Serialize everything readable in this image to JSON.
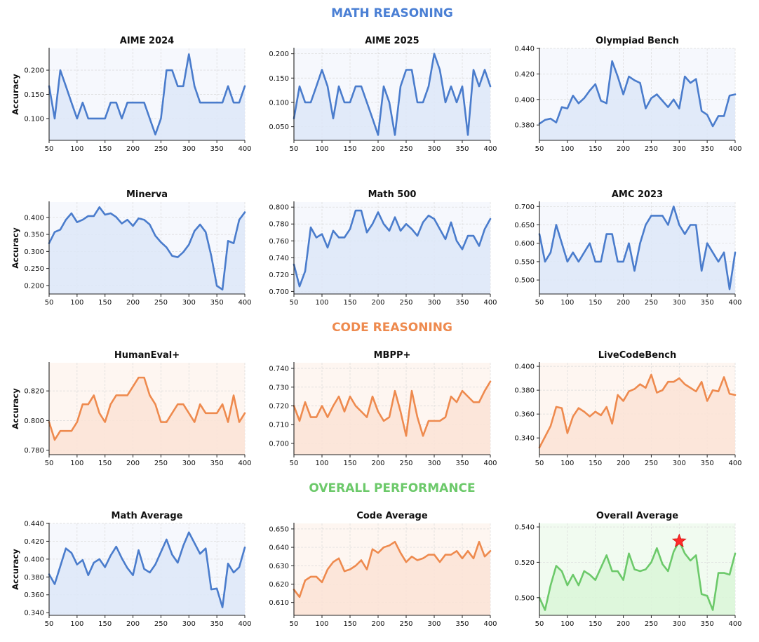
{
  "sections": [
    {
      "title": "MATH REASONING",
      "color": "#4a7fd4"
    },
    {
      "title": "CODE REASONING",
      "color": "#ee8a4e"
    },
    {
      "title": "OVERALL PERFORMANCE",
      "color": "#6cc96a"
    }
  ],
  "palettes": {
    "math": {
      "line": "#4a7ccc",
      "fill": "#dde8f8",
      "bg": "#f6f8fd"
    },
    "code": {
      "line": "#ee8a4e",
      "fill": "#fbe3d6",
      "bg": "#fef6f1"
    },
    "overall": {
      "line": "#6cc96a",
      "fill": "#dbf6d8",
      "bg": "#f1fbf0"
    }
  },
  "highlight_color": "#ff2a2a",
  "chart_data": [
    {
      "type": "area",
      "title": "AIME 2024",
      "palette": "math",
      "ylabel": "Accuracy",
      "x": [
        50,
        60,
        70,
        80,
        90,
        100,
        110,
        120,
        130,
        140,
        150,
        160,
        170,
        180,
        190,
        200,
        210,
        220,
        230,
        240,
        250,
        260,
        270,
        280,
        290,
        300,
        310,
        320,
        330,
        340,
        350,
        360,
        370,
        380,
        390,
        400
      ],
      "values": [
        0.167,
        0.1,
        0.2,
        0.167,
        0.133,
        0.1,
        0.133,
        0.1,
        0.1,
        0.1,
        0.1,
        0.133,
        0.133,
        0.1,
        0.133,
        0.133,
        0.133,
        0.133,
        0.1,
        0.067,
        0.1,
        0.2,
        0.2,
        0.167,
        0.167,
        0.233,
        0.167,
        0.133,
        0.133,
        0.133,
        0.133,
        0.133,
        0.167,
        0.133,
        0.133,
        0.167
      ],
      "xlim": [
        50,
        400
      ],
      "ylim": [
        0.055,
        0.245
      ],
      "yticks": [
        0.1,
        0.15,
        0.2
      ],
      "decimals": 3
    },
    {
      "type": "area",
      "title": "AIME 2025",
      "palette": "math",
      "ylabel": "",
      "x": [
        50,
        60,
        70,
        80,
        90,
        100,
        110,
        120,
        130,
        140,
        150,
        160,
        170,
        180,
        190,
        200,
        210,
        220,
        230,
        240,
        250,
        260,
        270,
        280,
        290,
        300,
        310,
        320,
        330,
        340,
        350,
        360,
        370,
        380,
        390,
        400
      ],
      "values": [
        0.067,
        0.133,
        0.1,
        0.1,
        0.133,
        0.167,
        0.133,
        0.067,
        0.133,
        0.1,
        0.1,
        0.133,
        0.133,
        0.1,
        0.067,
        0.033,
        0.133,
        0.1,
        0.033,
        0.133,
        0.167,
        0.167,
        0.1,
        0.1,
        0.133,
        0.2,
        0.167,
        0.1,
        0.133,
        0.1,
        0.133,
        0.033,
        0.167,
        0.133,
        0.167,
        0.133
      ],
      "xlim": [
        50,
        400
      ],
      "ylim": [
        0.022,
        0.211
      ],
      "yticks": [
        0.05,
        0.1,
        0.15,
        0.2
      ],
      "decimals": 3
    },
    {
      "type": "area",
      "title": "Olympiad Bench",
      "palette": "math",
      "ylabel": "",
      "x": [
        50,
        60,
        70,
        80,
        90,
        100,
        110,
        120,
        130,
        140,
        150,
        160,
        170,
        180,
        190,
        200,
        210,
        220,
        230,
        240,
        250,
        260,
        270,
        280,
        290,
        300,
        310,
        320,
        330,
        340,
        350,
        360,
        370,
        380,
        390,
        400
      ],
      "values": [
        0.381,
        0.384,
        0.385,
        0.382,
        0.394,
        0.393,
        0.403,
        0.397,
        0.401,
        0.407,
        0.412,
        0.399,
        0.397,
        0.43,
        0.418,
        0.404,
        0.418,
        0.415,
        0.413,
        0.393,
        0.401,
        0.404,
        0.399,
        0.394,
        0.4,
        0.393,
        0.418,
        0.413,
        0.416,
        0.391,
        0.388,
        0.379,
        0.387,
        0.387,
        0.403,
        0.404
      ],
      "xlim": [
        50,
        400
      ],
      "ylim": [
        0.368,
        0.44
      ],
      "yticks": [
        0.38,
        0.4,
        0.42,
        0.44
      ],
      "decimals": 3
    },
    {
      "type": "area",
      "title": "Minerva",
      "palette": "math",
      "ylabel": "Accuracy",
      "x": [
        50,
        60,
        70,
        80,
        90,
        100,
        110,
        120,
        130,
        140,
        150,
        160,
        170,
        180,
        190,
        200,
        210,
        220,
        230,
        240,
        250,
        260,
        270,
        280,
        290,
        300,
        310,
        320,
        330,
        340,
        350,
        360,
        370,
        380,
        390,
        400
      ],
      "values": [
        0.324,
        0.357,
        0.364,
        0.393,
        0.412,
        0.386,
        0.393,
        0.404,
        0.404,
        0.43,
        0.408,
        0.412,
        0.401,
        0.382,
        0.393,
        0.375,
        0.397,
        0.393,
        0.379,
        0.346,
        0.327,
        0.312,
        0.287,
        0.283,
        0.298,
        0.32,
        0.36,
        0.379,
        0.357,
        0.287,
        0.199,
        0.188,
        0.331,
        0.324,
        0.393,
        0.415
      ],
      "xlim": [
        50,
        400
      ],
      "ylim": [
        0.175,
        0.445
      ],
      "yticks": [
        0.2,
        0.25,
        0.3,
        0.35,
        0.4
      ],
      "decimals": 3
    },
    {
      "type": "area",
      "title": "Math 500",
      "palette": "math",
      "ylabel": "",
      "x": [
        50,
        60,
        70,
        80,
        90,
        100,
        110,
        120,
        130,
        140,
        150,
        160,
        170,
        180,
        190,
        200,
        210,
        220,
        230,
        240,
        250,
        260,
        270,
        280,
        290,
        300,
        310,
        320,
        330,
        340,
        350,
        360,
        370,
        380,
        390,
        400
      ],
      "values": [
        0.732,
        0.706,
        0.724,
        0.776,
        0.764,
        0.768,
        0.752,
        0.772,
        0.764,
        0.764,
        0.774,
        0.796,
        0.796,
        0.77,
        0.78,
        0.794,
        0.78,
        0.772,
        0.788,
        0.772,
        0.78,
        0.774,
        0.766,
        0.782,
        0.79,
        0.786,
        0.774,
        0.762,
        0.782,
        0.76,
        0.75,
        0.766,
        0.766,
        0.754,
        0.774,
        0.786
      ],
      "xlim": [
        50,
        400
      ],
      "ylim": [
        0.697,
        0.806
      ],
      "yticks": [
        0.7,
        0.72,
        0.74,
        0.76,
        0.78,
        0.8
      ],
      "decimals": 3
    },
    {
      "type": "area",
      "title": "AMC 2023",
      "palette": "math",
      "ylabel": "",
      "x": [
        50,
        60,
        70,
        80,
        90,
        100,
        110,
        120,
        130,
        140,
        150,
        160,
        170,
        180,
        190,
        200,
        210,
        220,
        230,
        240,
        250,
        260,
        270,
        280,
        290,
        300,
        310,
        320,
        330,
        340,
        350,
        360,
        370,
        380,
        390,
        400
      ],
      "values": [
        0.625,
        0.55,
        0.575,
        0.65,
        0.6,
        0.55,
        0.575,
        0.55,
        0.575,
        0.6,
        0.55,
        0.55,
        0.625,
        0.625,
        0.55,
        0.55,
        0.6,
        0.525,
        0.6,
        0.65,
        0.675,
        0.675,
        0.675,
        0.65,
        0.7,
        0.65,
        0.625,
        0.65,
        0.65,
        0.525,
        0.6,
        0.575,
        0.55,
        0.575,
        0.475,
        0.575
      ],
      "xlim": [
        50,
        400
      ],
      "ylim": [
        0.462,
        0.712
      ],
      "yticks": [
        0.5,
        0.55,
        0.6,
        0.65,
        0.7
      ],
      "decimals": 3
    },
    {
      "type": "area",
      "title": "HumanEval+",
      "palette": "code",
      "ylabel": "Accuracy",
      "x": [
        50,
        60,
        70,
        80,
        90,
        100,
        110,
        120,
        130,
        140,
        150,
        160,
        170,
        180,
        190,
        200,
        210,
        220,
        230,
        240,
        250,
        260,
        270,
        280,
        290,
        300,
        310,
        320,
        330,
        340,
        350,
        360,
        370,
        380,
        390,
        400
      ],
      "values": [
        0.799,
        0.787,
        0.793,
        0.793,
        0.793,
        0.799,
        0.811,
        0.811,
        0.817,
        0.805,
        0.799,
        0.811,
        0.817,
        0.817,
        0.817,
        0.823,
        0.829,
        0.829,
        0.817,
        0.811,
        0.799,
        0.799,
        0.805,
        0.811,
        0.811,
        0.805,
        0.799,
        0.811,
        0.805,
        0.805,
        0.805,
        0.811,
        0.799,
        0.817,
        0.799,
        0.805
      ],
      "xlim": [
        50,
        400
      ],
      "ylim": [
        0.777,
        0.839
      ],
      "yticks": [
        0.78,
        0.8,
        0.82
      ],
      "decimals": 3
    },
    {
      "type": "area",
      "title": "MBPP+",
      "palette": "code",
      "ylabel": "",
      "x": [
        50,
        60,
        70,
        80,
        90,
        100,
        110,
        120,
        130,
        140,
        150,
        160,
        170,
        180,
        190,
        200,
        210,
        220,
        230,
        240,
        250,
        260,
        270,
        280,
        290,
        300,
        310,
        320,
        330,
        340,
        350,
        360,
        370,
        380,
        390,
        400
      ],
      "values": [
        0.72,
        0.712,
        0.722,
        0.714,
        0.714,
        0.72,
        0.714,
        0.72,
        0.725,
        0.717,
        0.725,
        0.72,
        0.717,
        0.714,
        0.725,
        0.717,
        0.712,
        0.714,
        0.728,
        0.717,
        0.704,
        0.728,
        0.714,
        0.704,
        0.712,
        0.712,
        0.712,
        0.714,
        0.725,
        0.722,
        0.728,
        0.725,
        0.722,
        0.722,
        0.728,
        0.733
      ],
      "xlim": [
        50,
        400
      ],
      "ylim": [
        0.694,
        0.743
      ],
      "yticks": [
        0.7,
        0.71,
        0.72,
        0.73,
        0.74
      ],
      "decimals": 3
    },
    {
      "type": "area",
      "title": "LiveCodeBench",
      "palette": "code",
      "ylabel": "",
      "x": [
        50,
        60,
        70,
        80,
        90,
        100,
        110,
        120,
        130,
        140,
        150,
        160,
        170,
        180,
        190,
        200,
        210,
        220,
        230,
        240,
        250,
        260,
        270,
        280,
        290,
        300,
        310,
        320,
        330,
        340,
        350,
        360,
        370,
        380,
        390,
        400
      ],
      "values": [
        0.332,
        0.341,
        0.35,
        0.366,
        0.365,
        0.344,
        0.358,
        0.365,
        0.362,
        0.358,
        0.362,
        0.359,
        0.366,
        0.352,
        0.376,
        0.371,
        0.379,
        0.381,
        0.385,
        0.382,
        0.393,
        0.378,
        0.38,
        0.387,
        0.387,
        0.39,
        0.385,
        0.382,
        0.379,
        0.387,
        0.371,
        0.38,
        0.379,
        0.391,
        0.377,
        0.376
      ],
      "xlim": [
        50,
        400
      ],
      "ylim": [
        0.326,
        0.403
      ],
      "yticks": [
        0.34,
        0.36,
        0.38,
        0.4
      ],
      "decimals": 3
    },
    {
      "type": "area",
      "title": "Math Average",
      "palette": "math",
      "ylabel": "Accuracy",
      "x": [
        50,
        60,
        70,
        80,
        90,
        100,
        110,
        120,
        130,
        140,
        150,
        160,
        170,
        180,
        190,
        200,
        210,
        220,
        230,
        240,
        250,
        260,
        270,
        280,
        290,
        300,
        310,
        320,
        330,
        340,
        350,
        360,
        370,
        380,
        390,
        400
      ],
      "values": [
        0.383,
        0.372,
        0.392,
        0.412,
        0.407,
        0.394,
        0.399,
        0.382,
        0.396,
        0.4,
        0.391,
        0.404,
        0.414,
        0.401,
        0.39,
        0.382,
        0.41,
        0.389,
        0.385,
        0.394,
        0.408,
        0.422,
        0.405,
        0.396,
        0.415,
        0.43,
        0.418,
        0.406,
        0.412,
        0.366,
        0.367,
        0.346,
        0.395,
        0.385,
        0.391,
        0.413
      ],
      "xlim": [
        50,
        400
      ],
      "ylim": [
        0.337,
        0.44
      ],
      "yticks": [
        0.34,
        0.36,
        0.38,
        0.4,
        0.42,
        0.44
      ],
      "decimals": 3
    },
    {
      "type": "area",
      "title": "Code Average",
      "palette": "code",
      "ylabel": "",
      "x": [
        50,
        60,
        70,
        80,
        90,
        100,
        110,
        120,
        130,
        140,
        150,
        160,
        170,
        180,
        190,
        200,
        210,
        220,
        230,
        240,
        250,
        260,
        270,
        280,
        290,
        300,
        310,
        320,
        330,
        340,
        350,
        360,
        370,
        380,
        390,
        400
      ],
      "values": [
        0.617,
        0.613,
        0.622,
        0.624,
        0.624,
        0.621,
        0.628,
        0.632,
        0.634,
        0.627,
        0.628,
        0.63,
        0.633,
        0.628,
        0.639,
        0.637,
        0.64,
        0.641,
        0.643,
        0.637,
        0.632,
        0.635,
        0.633,
        0.634,
        0.636,
        0.636,
        0.632,
        0.636,
        0.636,
        0.638,
        0.634,
        0.638,
        0.634,
        0.643,
        0.635,
        0.638
      ],
      "xlim": [
        50,
        400
      ],
      "ylim": [
        0.603,
        0.653
      ],
      "yticks": [
        0.61,
        0.62,
        0.63,
        0.64,
        0.65
      ],
      "decimals": 3
    },
    {
      "type": "area",
      "title": "Overall Average",
      "palette": "overall",
      "ylabel": "",
      "x": [
        50,
        60,
        70,
        80,
        90,
        100,
        110,
        120,
        130,
        140,
        150,
        160,
        170,
        180,
        190,
        200,
        210,
        220,
        230,
        240,
        250,
        260,
        270,
        280,
        290,
        300,
        310,
        320,
        330,
        340,
        350,
        360,
        370,
        380,
        390,
        400
      ],
      "values": [
        0.5,
        0.493,
        0.507,
        0.518,
        0.515,
        0.507,
        0.513,
        0.507,
        0.515,
        0.513,
        0.51,
        0.517,
        0.524,
        0.515,
        0.515,
        0.51,
        0.525,
        0.516,
        0.515,
        0.516,
        0.52,
        0.528,
        0.519,
        0.515,
        0.526,
        0.532,
        0.525,
        0.521,
        0.524,
        0.502,
        0.501,
        0.493,
        0.514,
        0.514,
        0.513,
        0.525
      ],
      "xlim": [
        50,
        400
      ],
      "ylim": [
        0.49,
        0.542
      ],
      "yticks": [
        0.5,
        0.52,
        0.54
      ],
      "decimals": 3,
      "highlight": {
        "x": 300,
        "y": 0.532
      }
    }
  ]
}
